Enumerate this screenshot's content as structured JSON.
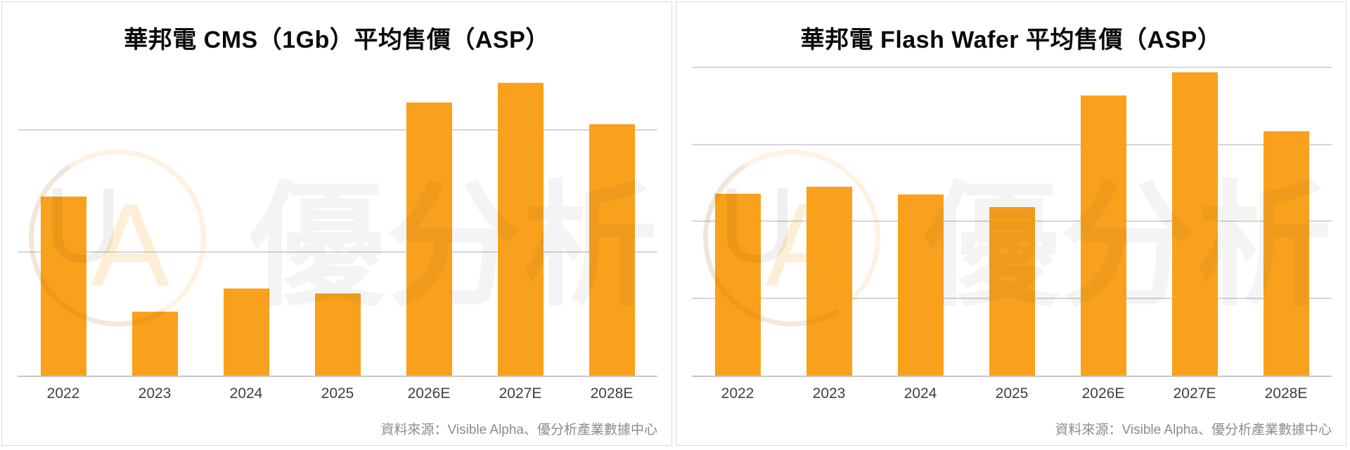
{
  "page": {
    "background": "#ffffff"
  },
  "colors": {
    "bar": "#F9A11C",
    "gridline": "#D6D6D6",
    "baseline": "#C6C6C6",
    "title_text": "#0A0A0A",
    "tick_text": "#404040",
    "source_text": "#8C8C8C",
    "card_border": "#DCDCDC",
    "card_background": "#FFFFFF",
    "watermark_orange": "#F7A623",
    "watermark_gray": "#EDEDED"
  },
  "watermark": {
    "monogram_u": "U",
    "monogram_a": "A",
    "brand_text": "優分析"
  },
  "chart_data": [
    {
      "type": "bar",
      "title": "華邦電 CMS（1Gb）平均售價（ASP）",
      "categories": [
        "2022",
        "2023",
        "2024",
        "2025",
        "2026E",
        "2027E",
        "2028E"
      ],
      "values": [
        1.46,
        0.52,
        0.71,
        0.67,
        2.23,
        2.39,
        2.05
      ],
      "value_unit": "relative units (no y-axis labels shown; horizontal gridline spacing = 1 unit)",
      "ylim": [
        0,
        2.56
      ],
      "gridline_values": [
        1,
        2
      ],
      "grid": "horizontal gridlines only, no y-axis tick labels",
      "legend": "none",
      "xlabel": "",
      "ylabel": "",
      "source": "資料來源：Visible Alpha、優分析產業數據中心"
    },
    {
      "type": "bar",
      "title": "華邦電 Flash Wafer 平均售價（ASP）",
      "categories": [
        "2022",
        "2023",
        "2024",
        "2025",
        "2026E",
        "2027E",
        "2028E"
      ],
      "values": [
        2.37,
        2.46,
        2.36,
        2.19,
        3.65,
        3.95,
        3.18
      ],
      "value_unit": "relative units (no y-axis labels shown; horizontal gridline spacing = 1 unit)",
      "ylim": [
        0,
        4.13
      ],
      "gridline_values": [
        1,
        2,
        3,
        4
      ],
      "grid": "horizontal gridlines only, no y-axis tick labels",
      "legend": "none",
      "xlabel": "",
      "ylabel": "",
      "source": "資料來源：Visible Alpha、優分析產業數據中心"
    }
  ]
}
